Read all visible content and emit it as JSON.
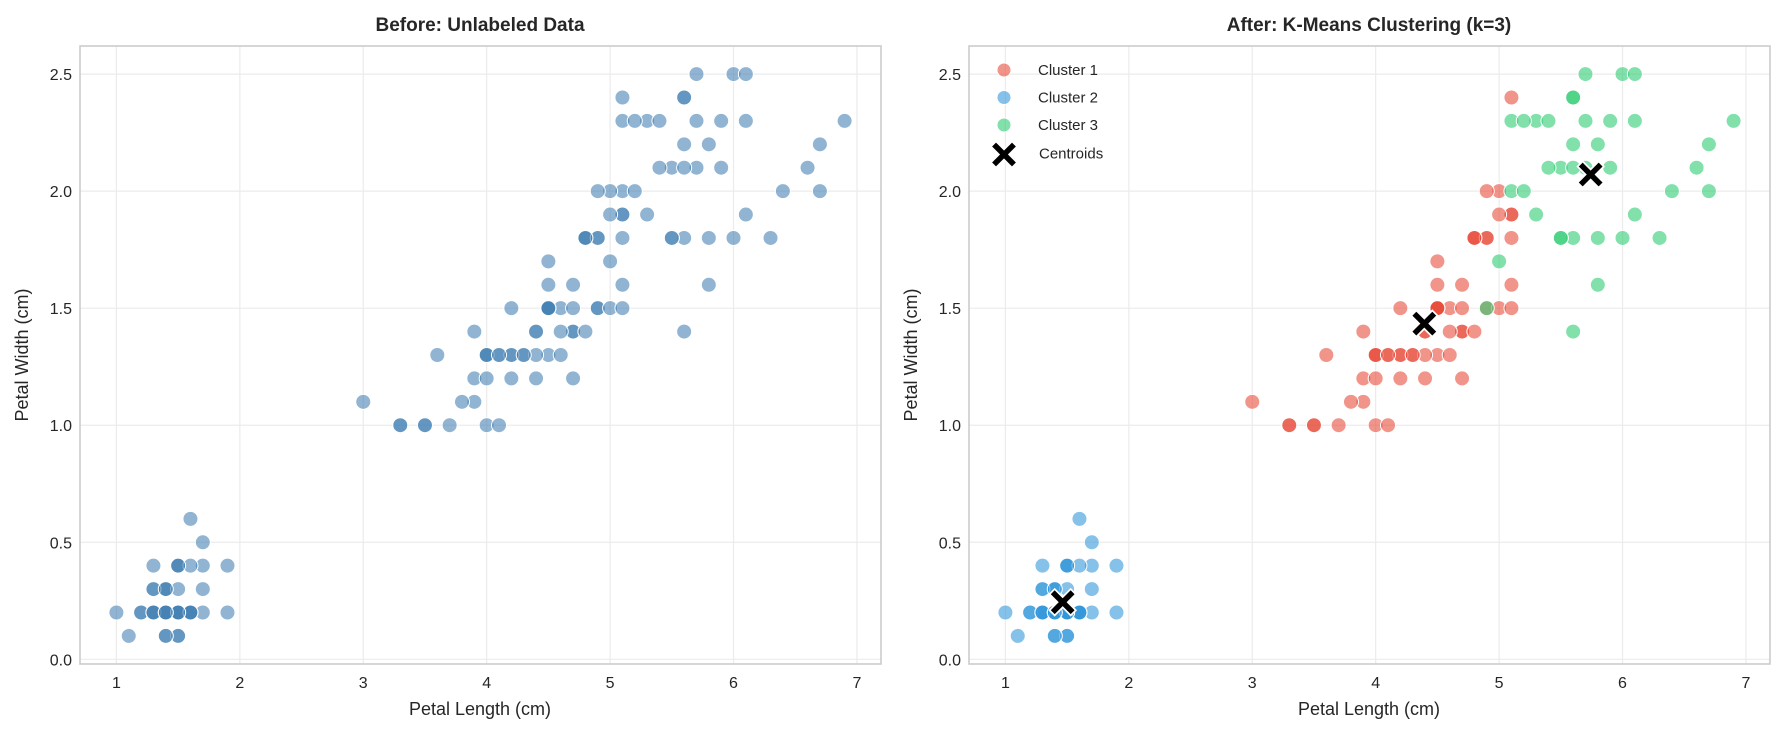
{
  "chart_data": [
    {
      "type": "scatter",
      "title": "Before: Unlabeled Data",
      "xlabel": "Petal Length (cm)",
      "ylabel": "Petal Width (cm)",
      "xlim": [
        0.705,
        7.195
      ],
      "ylim": [
        -0.02,
        2.62
      ],
      "xticks": [
        "1",
        "2",
        "3",
        "4",
        "5",
        "6",
        "7"
      ],
      "yticks": [
        "0.0",
        "0.5",
        "1.0",
        "1.5",
        "2.0",
        "2.5"
      ],
      "grid": true,
      "color": "#4682b4",
      "points": [
        [
          1.4,
          0.2
        ],
        [
          1.4,
          0.2
        ],
        [
          1.3,
          0.2
        ],
        [
          1.5,
          0.2
        ],
        [
          1.4,
          0.2
        ],
        [
          1.7,
          0.4
        ],
        [
          1.4,
          0.3
        ],
        [
          1.5,
          0.2
        ],
        [
          1.4,
          0.2
        ],
        [
          1.5,
          0.1
        ],
        [
          1.5,
          0.2
        ],
        [
          1.6,
          0.2
        ],
        [
          1.4,
          0.1
        ],
        [
          1.1,
          0.1
        ],
        [
          1.2,
          0.2
        ],
        [
          1.5,
          0.4
        ],
        [
          1.3,
          0.4
        ],
        [
          1.4,
          0.3
        ],
        [
          1.7,
          0.3
        ],
        [
          1.5,
          0.3
        ],
        [
          1.7,
          0.2
        ],
        [
          1.5,
          0.4
        ],
        [
          1.0,
          0.2
        ],
        [
          1.7,
          0.5
        ],
        [
          1.9,
          0.2
        ],
        [
          1.6,
          0.2
        ],
        [
          1.6,
          0.4
        ],
        [
          1.5,
          0.2
        ],
        [
          1.4,
          0.2
        ],
        [
          1.6,
          0.2
        ],
        [
          1.6,
          0.2
        ],
        [
          1.5,
          0.4
        ],
        [
          1.5,
          0.1
        ],
        [
          1.4,
          0.2
        ],
        [
          1.5,
          0.2
        ],
        [
          1.2,
          0.2
        ],
        [
          1.3,
          0.2
        ],
        [
          1.4,
          0.1
        ],
        [
          1.3,
          0.2
        ],
        [
          1.5,
          0.2
        ],
        [
          1.3,
          0.3
        ],
        [
          1.3,
          0.3
        ],
        [
          1.3,
          0.2
        ],
        [
          1.6,
          0.6
        ],
        [
          1.9,
          0.4
        ],
        [
          1.4,
          0.3
        ],
        [
          1.6,
          0.2
        ],
        [
          1.4,
          0.2
        ],
        [
          1.5,
          0.2
        ],
        [
          1.4,
          0.2
        ],
        [
          4.7,
          1.4
        ],
        [
          4.5,
          1.5
        ],
        [
          4.9,
          1.5
        ],
        [
          4.0,
          1.3
        ],
        [
          4.6,
          1.5
        ],
        [
          4.5,
          1.3
        ],
        [
          4.7,
          1.6
        ],
        [
          3.3,
          1.0
        ],
        [
          4.6,
          1.3
        ],
        [
          3.9,
          1.4
        ],
        [
          3.5,
          1.0
        ],
        [
          4.2,
          1.5
        ],
        [
          4.0,
          1.0
        ],
        [
          4.7,
          1.4
        ],
        [
          3.6,
          1.3
        ],
        [
          4.4,
          1.4
        ],
        [
          4.5,
          1.5
        ],
        [
          4.1,
          1.0
        ],
        [
          4.5,
          1.5
        ],
        [
          3.9,
          1.1
        ],
        [
          4.8,
          1.8
        ],
        [
          4.0,
          1.3
        ],
        [
          4.9,
          1.5
        ],
        [
          4.7,
          1.2
        ],
        [
          4.3,
          1.3
        ],
        [
          4.4,
          1.4
        ],
        [
          4.8,
          1.4
        ],
        [
          5.0,
          1.7
        ],
        [
          4.5,
          1.5
        ],
        [
          3.5,
          1.0
        ],
        [
          3.8,
          1.1
        ],
        [
          3.7,
          1.0
        ],
        [
          3.9,
          1.2
        ],
        [
          5.1,
          1.6
        ],
        [
          4.5,
          1.5
        ],
        [
          4.5,
          1.6
        ],
        [
          4.7,
          1.5
        ],
        [
          4.4,
          1.3
        ],
        [
          4.1,
          1.3
        ],
        [
          4.0,
          1.3
        ],
        [
          4.4,
          1.2
        ],
        [
          4.6,
          1.4
        ],
        [
          4.0,
          1.2
        ],
        [
          3.3,
          1.0
        ],
        [
          4.2,
          1.3
        ],
        [
          4.2,
          1.2
        ],
        [
          4.2,
          1.3
        ],
        [
          4.3,
          1.3
        ],
        [
          3.0,
          1.1
        ],
        [
          4.1,
          1.3
        ],
        [
          6.0,
          2.5
        ],
        [
          5.1,
          1.9
        ],
        [
          5.9,
          2.1
        ],
        [
          5.6,
          1.8
        ],
        [
          5.8,
          2.2
        ],
        [
          6.6,
          2.1
        ],
        [
          4.5,
          1.7
        ],
        [
          6.3,
          1.8
        ],
        [
          5.8,
          1.8
        ],
        [
          6.1,
          2.5
        ],
        [
          5.1,
          2.0
        ],
        [
          5.3,
          1.9
        ],
        [
          5.5,
          2.1
        ],
        [
          5.0,
          2.0
        ],
        [
          5.1,
          2.4
        ],
        [
          5.3,
          2.3
        ],
        [
          5.5,
          1.8
        ],
        [
          6.7,
          2.2
        ],
        [
          6.9,
          2.3
        ],
        [
          5.0,
          1.5
        ],
        [
          5.7,
          2.3
        ],
        [
          4.9,
          2.0
        ],
        [
          6.7,
          2.0
        ],
        [
          4.9,
          1.8
        ],
        [
          5.7,
          2.1
        ],
        [
          6.0,
          1.8
        ],
        [
          4.8,
          1.8
        ],
        [
          4.9,
          1.8
        ],
        [
          5.6,
          2.1
        ],
        [
          5.8,
          1.6
        ],
        [
          6.1,
          1.9
        ],
        [
          6.4,
          2.0
        ],
        [
          5.6,
          2.2
        ],
        [
          5.1,
          1.5
        ],
        [
          5.6,
          1.4
        ],
        [
          6.1,
          2.3
        ],
        [
          5.6,
          2.4
        ],
        [
          5.5,
          1.8
        ],
        [
          4.8,
          1.8
        ],
        [
          5.4,
          2.1
        ],
        [
          5.6,
          2.4
        ],
        [
          5.1,
          2.3
        ],
        [
          5.1,
          1.9
        ],
        [
          5.9,
          2.3
        ],
        [
          5.7,
          2.5
        ],
        [
          5.2,
          2.3
        ],
        [
          5.0,
          1.9
        ],
        [
          5.2,
          2.0
        ],
        [
          5.4,
          2.3
        ],
        [
          5.1,
          1.8
        ]
      ]
    },
    {
      "type": "scatter",
      "title": "After: K-Means Clustering (k=3)",
      "xlabel": "Petal Length (cm)",
      "ylabel": "Petal Width (cm)",
      "xlim": [
        0.705,
        7.195
      ],
      "ylim": [
        -0.02,
        2.62
      ],
      "xticks": [
        "1",
        "2",
        "3",
        "4",
        "5",
        "6",
        "7"
      ],
      "yticks": [
        "0.0",
        "0.5",
        "1.0",
        "1.5",
        "2.0",
        "2.5"
      ],
      "grid": true,
      "legend": "top-left",
      "series": [
        {
          "name": "Cluster 1",
          "color": "#e74c3c",
          "points": [
            [
              4.7,
              1.4
            ],
            [
              4.5,
              1.5
            ],
            [
              4.0,
              1.3
            ],
            [
              4.6,
              1.5
            ],
            [
              4.5,
              1.3
            ],
            [
              4.7,
              1.6
            ],
            [
              3.3,
              1.0
            ],
            [
              4.6,
              1.3
            ],
            [
              3.9,
              1.4
            ],
            [
              3.5,
              1.0
            ],
            [
              4.2,
              1.5
            ],
            [
              4.0,
              1.0
            ],
            [
              4.7,
              1.4
            ],
            [
              3.6,
              1.3
            ],
            [
              4.4,
              1.4
            ],
            [
              4.5,
              1.5
            ],
            [
              4.1,
              1.0
            ],
            [
              4.5,
              1.5
            ],
            [
              3.9,
              1.1
            ],
            [
              4.8,
              1.8
            ],
            [
              4.0,
              1.3
            ],
            [
              4.9,
              1.5
            ],
            [
              4.7,
              1.2
            ],
            [
              4.3,
              1.3
            ],
            [
              4.4,
              1.4
            ],
            [
              4.8,
              1.4
            ],
            [
              4.5,
              1.5
            ],
            [
              3.5,
              1.0
            ],
            [
              3.8,
              1.1
            ],
            [
              3.7,
              1.0
            ],
            [
              3.9,
              1.2
            ],
            [
              5.1,
              1.6
            ],
            [
              4.5,
              1.5
            ],
            [
              4.5,
              1.6
            ],
            [
              4.7,
              1.5
            ],
            [
              4.4,
              1.3
            ],
            [
              4.1,
              1.3
            ],
            [
              4.0,
              1.3
            ],
            [
              4.4,
              1.2
            ],
            [
              4.6,
              1.4
            ],
            [
              4.0,
              1.2
            ],
            [
              3.3,
              1.0
            ],
            [
              4.2,
              1.3
            ],
            [
              4.2,
              1.2
            ],
            [
              4.2,
              1.3
            ],
            [
              4.3,
              1.3
            ],
            [
              3.0,
              1.1
            ],
            [
              4.1,
              1.3
            ],
            [
              5.1,
              1.9
            ],
            [
              4.5,
              1.7
            ],
            [
              5.0,
              2.0
            ],
            [
              5.1,
              2.4
            ],
            [
              5.0,
              1.5
            ],
            [
              4.9,
              2.0
            ],
            [
              4.9,
              1.8
            ],
            [
              4.8,
              1.8
            ],
            [
              4.9,
              1.8
            ],
            [
              5.1,
              1.5
            ],
            [
              4.8,
              1.8
            ],
            [
              5.1,
              1.9
            ],
            [
              5.0,
              1.9
            ],
            [
              5.1,
              1.8
            ]
          ]
        },
        {
          "name": "Cluster 2",
          "color": "#3498db",
          "points": [
            [
              1.4,
              0.2
            ],
            [
              1.4,
              0.2
            ],
            [
              1.3,
              0.2
            ],
            [
              1.5,
              0.2
            ],
            [
              1.4,
              0.2
            ],
            [
              1.7,
              0.4
            ],
            [
              1.4,
              0.3
            ],
            [
              1.5,
              0.2
            ],
            [
              1.4,
              0.2
            ],
            [
              1.5,
              0.1
            ],
            [
              1.5,
              0.2
            ],
            [
              1.6,
              0.2
            ],
            [
              1.4,
              0.1
            ],
            [
              1.1,
              0.1
            ],
            [
              1.2,
              0.2
            ],
            [
              1.5,
              0.4
            ],
            [
              1.3,
              0.4
            ],
            [
              1.4,
              0.3
            ],
            [
              1.7,
              0.3
            ],
            [
              1.5,
              0.3
            ],
            [
              1.7,
              0.2
            ],
            [
              1.5,
              0.4
            ],
            [
              1.0,
              0.2
            ],
            [
              1.7,
              0.5
            ],
            [
              1.9,
              0.2
            ],
            [
              1.6,
              0.2
            ],
            [
              1.6,
              0.4
            ],
            [
              1.5,
              0.2
            ],
            [
              1.4,
              0.2
            ],
            [
              1.6,
              0.2
            ],
            [
              1.6,
              0.2
            ],
            [
              1.5,
              0.4
            ],
            [
              1.5,
              0.1
            ],
            [
              1.4,
              0.2
            ],
            [
              1.5,
              0.2
            ],
            [
              1.2,
              0.2
            ],
            [
              1.3,
              0.2
            ],
            [
              1.4,
              0.1
            ],
            [
              1.3,
              0.2
            ],
            [
              1.5,
              0.2
            ],
            [
              1.3,
              0.3
            ],
            [
              1.3,
              0.3
            ],
            [
              1.3,
              0.2
            ],
            [
              1.6,
              0.6
            ],
            [
              1.9,
              0.4
            ],
            [
              1.4,
              0.3
            ],
            [
              1.6,
              0.2
            ],
            [
              1.4,
              0.2
            ],
            [
              1.5,
              0.2
            ],
            [
              1.4,
              0.2
            ]
          ]
        },
        {
          "name": "Cluster 3",
          "color": "#2ecc71",
          "points": [
            [
              4.9,
              1.5
            ],
            [
              5.0,
              1.7
            ],
            [
              6.0,
              2.5
            ],
            [
              5.9,
              2.1
            ],
            [
              5.6,
              1.8
            ],
            [
              5.8,
              2.2
            ],
            [
              6.6,
              2.1
            ],
            [
              6.3,
              1.8
            ],
            [
              5.8,
              1.8
            ],
            [
              6.1,
              2.5
            ],
            [
              5.1,
              2.0
            ],
            [
              5.3,
              1.9
            ],
            [
              5.5,
              2.1
            ],
            [
              5.3,
              2.3
            ],
            [
              5.5,
              1.8
            ],
            [
              6.7,
              2.2
            ],
            [
              6.9,
              2.3
            ],
            [
              5.7,
              2.3
            ],
            [
              6.7,
              2.0
            ],
            [
              5.7,
              2.1
            ],
            [
              6.0,
              1.8
            ],
            [
              5.6,
              2.1
            ],
            [
              5.8,
              1.6
            ],
            [
              6.1,
              1.9
            ],
            [
              6.4,
              2.0
            ],
            [
              5.6,
              2.2
            ],
            [
              5.6,
              1.4
            ],
            [
              6.1,
              2.3
            ],
            [
              5.6,
              2.4
            ],
            [
              5.5,
              1.8
            ],
            [
              5.4,
              2.1
            ],
            [
              5.6,
              2.4
            ],
            [
              5.1,
              2.3
            ],
            [
              5.9,
              2.3
            ],
            [
              5.7,
              2.5
            ],
            [
              5.2,
              2.3
            ],
            [
              5.2,
              2.0
            ],
            [
              5.4,
              2.3
            ]
          ]
        }
      ],
      "centroids": {
        "name": "Centroids",
        "color": "#000000",
        "points": [
          [
            4.394,
            1.434
          ],
          [
            1.464,
            0.244
          ],
          [
            5.742,
            2.071
          ]
        ]
      }
    }
  ]
}
